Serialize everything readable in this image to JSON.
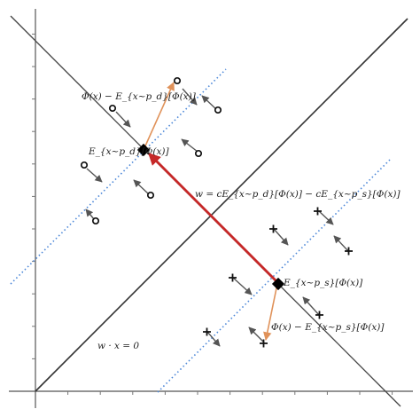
{
  "labels": {
    "centroid_d": "E_{x~p_d}[Φ(x)]",
    "centroid_s": "E_{x~p_s}[Φ(x)]",
    "dev_d": "Φ(x) − E_{x~p_d}[Φ(x)]",
    "dev_s": "Φ(x) − E_{x~p_s}[Φ(x)]",
    "w_def": "w = cE_{x~p_d}[Φ(x)] − cE_{x~p_s}[Φ(x)]",
    "hyperplane": "w · x = 0"
  },
  "colors": {
    "axes": "#555555",
    "lines": "#333333",
    "dotted": "#4a86d8",
    "w_arrow": "#c62828",
    "dev_arrow": "#e0925a",
    "small_arrow": "#555555",
    "points": "#111111"
  }
}
